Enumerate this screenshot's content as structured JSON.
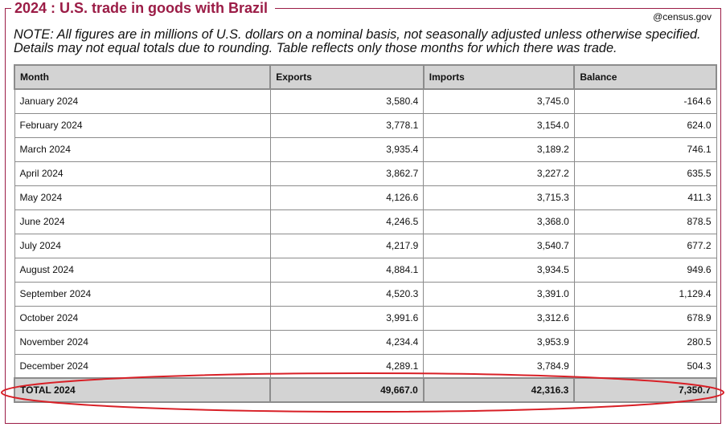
{
  "header": {
    "title": "2024 : U.S. trade in goods with Brazil",
    "source": "@census.gov",
    "note": "NOTE: All figures are in millions of U.S. dollars on a nominal basis, not seasonally adjusted unless otherwise specified. Details may not equal totals due to rounding. Table reflects only those months for which there was trade."
  },
  "table": {
    "columns": [
      "Month",
      "Exports",
      "Imports",
      "Balance"
    ],
    "rows": [
      {
        "month": "January 2024",
        "exports": "3,580.4",
        "imports": "3,745.0",
        "balance": "-164.6"
      },
      {
        "month": "February 2024",
        "exports": "3,778.1",
        "imports": "3,154.0",
        "balance": "624.0"
      },
      {
        "month": "March 2024",
        "exports": "3,935.4",
        "imports": "3,189.2",
        "balance": "746.1"
      },
      {
        "month": "April 2024",
        "exports": "3,862.7",
        "imports": "3,227.2",
        "balance": "635.5"
      },
      {
        "month": "May 2024",
        "exports": "4,126.6",
        "imports": "3,715.3",
        "balance": "411.3"
      },
      {
        "month": "June 2024",
        "exports": "4,246.5",
        "imports": "3,368.0",
        "balance": "878.5"
      },
      {
        "month": "July 2024",
        "exports": "4,217.9",
        "imports": "3,540.7",
        "balance": "677.2"
      },
      {
        "month": "August 2024",
        "exports": "4,884.1",
        "imports": "3,934.5",
        "balance": "949.6"
      },
      {
        "month": "September 2024",
        "exports": "4,520.3",
        "imports": "3,391.0",
        "balance": "1,129.4"
      },
      {
        "month": "October 2024",
        "exports": "3,991.6",
        "imports": "3,312.6",
        "balance": "678.9"
      },
      {
        "month": "November 2024",
        "exports": "4,234.4",
        "imports": "3,953.9",
        "balance": "280.5"
      },
      {
        "month": "December 2024",
        "exports": "4,289.1",
        "imports": "3,784.9",
        "balance": "504.3"
      }
    ],
    "total": {
      "month": "TOTAL 2024",
      "exports": "49,667.0",
      "imports": "42,316.3",
      "balance": "7,350.7"
    }
  },
  "annotation": {
    "highlight_color": "#d81f26"
  }
}
